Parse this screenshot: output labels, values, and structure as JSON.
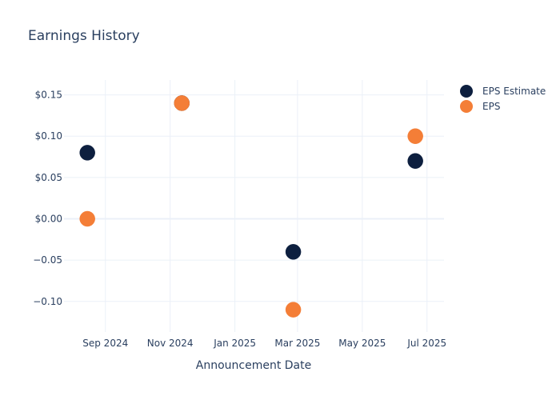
{
  "chart_data": {
    "type": "scatter",
    "title": "Earnings History",
    "xlabel": "Announcement Date",
    "ylabel": "",
    "x_range": [
      "2024-07-24",
      "2025-07-17"
    ],
    "ylim": [
      -0.137,
      0.168
    ],
    "grid": true,
    "legend_position": "top-right",
    "x_ticks": [
      {
        "date": "2024-09-01",
        "label": "Sep 2024"
      },
      {
        "date": "2024-11-01",
        "label": "Nov 2024"
      },
      {
        "date": "2025-01-01",
        "label": "Jan 2025"
      },
      {
        "date": "2025-03-01",
        "label": "Mar 2025"
      },
      {
        "date": "2025-05-01",
        "label": "May 2025"
      },
      {
        "date": "2025-07-01",
        "label": "Jul 2025"
      }
    ],
    "y_ticks": [
      {
        "value": 0.15,
        "label": "$0.15"
      },
      {
        "value": 0.1,
        "label": "$0.10"
      },
      {
        "value": 0.05,
        "label": "$0.05"
      },
      {
        "value": 0.0,
        "label": "$0.00"
      },
      {
        "value": -0.05,
        "label": "−0.05"
      },
      {
        "value": -0.1,
        "label": "−0.10"
      }
    ],
    "series": [
      {
        "name": "EPS Estimate",
        "color": "#0d1f3f",
        "points": [
          {
            "x": "2024-08-15",
            "y": 0.08
          },
          {
            "x": "2024-11-12",
            "y": 0.14
          },
          {
            "x": "2025-02-25",
            "y": -0.04
          },
          {
            "x": "2025-06-20",
            "y": 0.07
          }
        ]
      },
      {
        "name": "EPS",
        "color": "#f47e37",
        "points": [
          {
            "x": "2024-08-15",
            "y": 0.0
          },
          {
            "x": "2024-11-12",
            "y": 0.14
          },
          {
            "x": "2025-02-25",
            "y": -0.11
          },
          {
            "x": "2025-06-20",
            "y": 0.1
          }
        ]
      }
    ]
  }
}
